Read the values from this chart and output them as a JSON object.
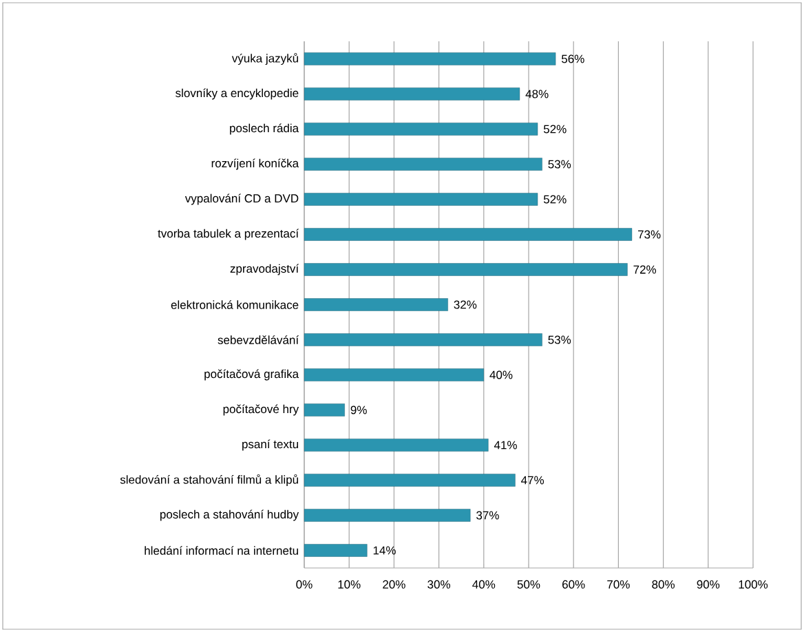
{
  "chart_data": {
    "type": "bar",
    "orientation": "horizontal",
    "categories": [
      "výuka jazyků",
      "slovníky a encyklopedie",
      "poslech rádia",
      "rozvíjení koníčka",
      "vypalování CD a DVD",
      "tvorba tabulek a prezentací",
      "zpravodajství",
      "elektronická komunikace",
      "sebevzdělávání",
      "počítačová grafika",
      "počítačové hry",
      "psaní textu",
      "sledování a stahování filmů a klipů",
      "poslech a stahování hudby",
      "hledání informací na internetu"
    ],
    "values": [
      56,
      48,
      52,
      53,
      52,
      73,
      72,
      32,
      53,
      40,
      9,
      41,
      47,
      37,
      14
    ],
    "value_labels": [
      "56%",
      "48%",
      "52%",
      "53%",
      "52%",
      "73%",
      "72%",
      "32%",
      "53%",
      "40%",
      "9%",
      "41%",
      "47%",
      "37%",
      "14%"
    ],
    "color": "#2b95b0",
    "xlim": [
      0,
      100
    ],
    "xticks": [
      {
        "value": 0,
        "label": "0%"
      },
      {
        "value": 10,
        "label": "10%"
      },
      {
        "value": 20,
        "label": "20%"
      },
      {
        "value": 30,
        "label": "30%"
      },
      {
        "value": 40,
        "label": "40%"
      },
      {
        "value": 50,
        "label": "50%"
      },
      {
        "value": 60,
        "label": "60%"
      },
      {
        "value": 70,
        "label": "70%"
      },
      {
        "value": 80,
        "label": "80%"
      },
      {
        "value": 90,
        "label": "90%"
      },
      {
        "value": 100,
        "label": "100%"
      }
    ],
    "grid": "x"
  }
}
